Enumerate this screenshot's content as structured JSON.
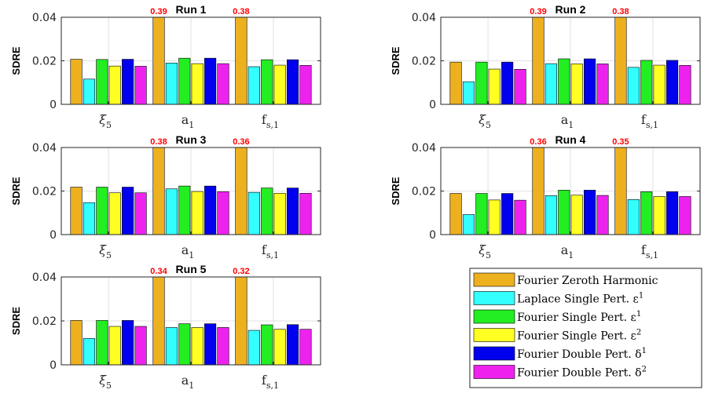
{
  "chart_data": {
    "type": "bar",
    "ylabel": "SDRE",
    "ylim": [
      0,
      0.04
    ],
    "yticks": [
      "0",
      "0.02",
      "0.04"
    ],
    "categories": [
      {
        "base": "ξ",
        "sub": "5"
      },
      {
        "base": "a",
        "sub": "1"
      },
      {
        "base": "f",
        "sub": "s,1"
      }
    ],
    "series_colors": [
      "#EDB120",
      "#33FFFF",
      "#22EE22",
      "#FFFF22",
      "#0000EE",
      "#EE22EE"
    ],
    "legend": [
      {
        "text": "Fourier Zeroth Harmonic",
        "sup": ""
      },
      {
        "text": "Laplace Single Pert. ε",
        "sup": "1"
      },
      {
        "text": "Fourier Single Pert. ε",
        "sup": "1"
      },
      {
        "text": "Fourier Single Pert. ε",
        "sup": "2"
      },
      {
        "text": "Fourier Double Pert. δ",
        "sup": "1"
      },
      {
        "text": "Fourier Double Pert. δ",
        "sup": "2"
      }
    ],
    "legend_placement": "bottom-right",
    "grid": true,
    "panels": [
      {
        "title": "Run 1",
        "clip_labels": [
          "0.39",
          "0.38"
        ],
        "values": [
          [
            0.0207,
            0.0116,
            0.0206,
            0.0176,
            0.0207,
            0.0175
          ],
          [
            0.39,
            0.019,
            0.0212,
            0.0187,
            0.0212,
            0.0187
          ],
          [
            0.38,
            0.0173,
            0.0205,
            0.018,
            0.0205,
            0.0179
          ]
        ]
      },
      {
        "title": "Run 2",
        "clip_labels": [
          "0.39",
          "0.38"
        ],
        "values": [
          [
            0.0194,
            0.0104,
            0.0194,
            0.0162,
            0.0194,
            0.0161
          ],
          [
            0.39,
            0.0187,
            0.0209,
            0.0186,
            0.0209,
            0.0186
          ],
          [
            0.38,
            0.017,
            0.0202,
            0.018,
            0.0202,
            0.0179
          ]
        ]
      },
      {
        "title": "Run 3",
        "clip_labels": [
          "0.38",
          "0.36"
        ],
        "values": [
          [
            0.0218,
            0.0147,
            0.0218,
            0.0192,
            0.0218,
            0.0192
          ],
          [
            0.38,
            0.021,
            0.0223,
            0.0198,
            0.0223,
            0.0197
          ],
          [
            0.36,
            0.0194,
            0.0214,
            0.019,
            0.0214,
            0.019
          ]
        ]
      },
      {
        "title": "Run 4",
        "clip_labels": [
          "0.36",
          "0.35"
        ],
        "values": [
          [
            0.0189,
            0.0092,
            0.0189,
            0.0159,
            0.0189,
            0.0158
          ],
          [
            0.36,
            0.0179,
            0.0204,
            0.0181,
            0.0204,
            0.018
          ],
          [
            0.35,
            0.0161,
            0.0197,
            0.0175,
            0.0197,
            0.0175
          ]
        ]
      },
      {
        "title": "Run 5",
        "clip_labels": [
          "0.34",
          "0.32"
        ],
        "values": [
          [
            0.0202,
            0.012,
            0.0202,
            0.0175,
            0.0202,
            0.0175
          ],
          [
            0.34,
            0.017,
            0.0187,
            0.017,
            0.0187,
            0.017
          ],
          [
            0.32,
            0.0157,
            0.0182,
            0.0162,
            0.0183,
            0.0162
          ]
        ]
      }
    ]
  }
}
